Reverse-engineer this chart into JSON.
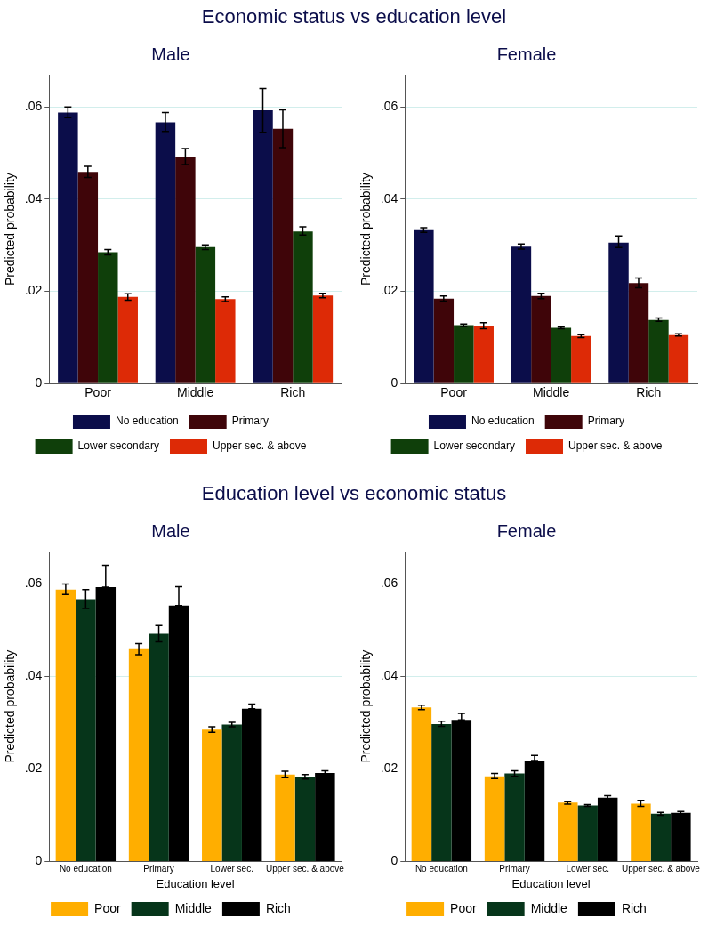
{
  "chart_data": [
    {
      "type": "bar",
      "title": "Economic status vs education level",
      "subtitle": "Male",
      "ylabel": "Predicted probability",
      "categories": [
        "Poor",
        "Middle",
        "Rich"
      ],
      "ylim": [
        0,
        0.067
      ],
      "yticks": [
        {
          "value": 0,
          "label": "0"
        },
        {
          "value": 0.02,
          "label": ".02"
        },
        {
          "value": 0.04,
          "label": ".04"
        },
        {
          "value": 0.06,
          "label": ".06"
        }
      ],
      "grid": "y",
      "legend": "bottom",
      "series": [
        {
          "name": "No education",
          "color": "#0b0d4a",
          "values": [
            0.0588,
            0.0567,
            0.0593
          ],
          "errors": [
            [
              0.0577,
              0.06
            ],
            [
              0.0547,
              0.0588
            ],
            [
              0.0545,
              0.064
            ]
          ]
        },
        {
          "name": "Primary",
          "color": "#3f0509",
          "values": [
            0.0459,
            0.0492,
            0.0553
          ],
          "errors": [
            [
              0.0447,
              0.0471
            ],
            [
              0.0475,
              0.051
            ],
            [
              0.0512,
              0.0594
            ]
          ]
        },
        {
          "name": "Lower secondary",
          "color": "#0f3f0a",
          "values": [
            0.0285,
            0.0296,
            0.033
          ],
          "errors": [
            [
              0.0279,
              0.0291
            ],
            [
              0.0291,
              0.0301
            ],
            [
              0.0322,
              0.034
            ]
          ]
        },
        {
          "name": "Upper sec. & above",
          "color": "#dd2a06",
          "values": [
            0.0188,
            0.0183,
            0.0191
          ],
          "errors": [
            [
              0.0181,
              0.0195
            ],
            [
              0.0178,
              0.0188
            ],
            [
              0.0186,
              0.0196
            ]
          ]
        }
      ]
    },
    {
      "type": "bar",
      "subtitle": "Female",
      "ylabel": "Predicted probability",
      "categories": [
        "Poor",
        "Middle",
        "Rich"
      ],
      "ylim": [
        0,
        0.067
      ],
      "yticks": [
        {
          "value": 0,
          "label": "0"
        },
        {
          "value": 0.02,
          "label": ".02"
        },
        {
          "value": 0.04,
          "label": ".04"
        },
        {
          "value": 0.06,
          "label": ".06"
        }
      ],
      "grid": "y",
      "legend": "bottom",
      "series": [
        {
          "name": "No education",
          "color": "#0b0d4a",
          "values": [
            0.0333,
            0.0297,
            0.0306
          ],
          "errors": [
            [
              0.0328,
              0.0338
            ],
            [
              0.0292,
              0.0303
            ],
            [
              0.0295,
              0.032
            ]
          ]
        },
        {
          "name": "Primary",
          "color": "#3f0509",
          "values": [
            0.0184,
            0.019,
            0.0218
          ],
          "errors": [
            [
              0.0179,
              0.019
            ],
            [
              0.0184,
              0.0196
            ],
            [
              0.0208,
              0.0229
            ]
          ]
        },
        {
          "name": "Lower secondary",
          "color": "#0f3f0a",
          "values": [
            0.0127,
            0.0121,
            0.0138
          ],
          "errors": [
            [
              0.0124,
              0.0129
            ],
            [
              0.0119,
              0.0123
            ],
            [
              0.0135,
              0.0142
            ]
          ]
        },
        {
          "name": "Upper sec. & above",
          "color": "#dd2a06",
          "values": [
            0.0125,
            0.0103,
            0.0105
          ],
          "errors": [
            [
              0.0119,
              0.0132
            ],
            [
              0.01,
              0.0106
            ],
            [
              0.0103,
              0.0108
            ]
          ]
        }
      ]
    },
    {
      "type": "bar",
      "title": "Education level vs economic status",
      "subtitle": "Male",
      "xlabel": "Education level",
      "ylabel": "Predicted probability",
      "categories": [
        "No education",
        "Primary",
        "Lower sec.",
        "Upper sec. & above"
      ],
      "ylim": [
        0,
        0.067
      ],
      "yticks": [
        {
          "value": 0,
          "label": "0"
        },
        {
          "value": 0.02,
          "label": ".02"
        },
        {
          "value": 0.04,
          "label": ".04"
        },
        {
          "value": 0.06,
          "label": ".06"
        }
      ],
      "grid": "y",
      "legend": "bottom",
      "series": [
        {
          "name": "Poor",
          "color": "#ffae00",
          "values": [
            0.0588,
            0.0459,
            0.0285,
            0.0188
          ],
          "errors": [
            [
              0.0577,
              0.06
            ],
            [
              0.0447,
              0.0471
            ],
            [
              0.0279,
              0.0291
            ],
            [
              0.0181,
              0.0195
            ]
          ]
        },
        {
          "name": "Middle",
          "color": "#06351a",
          "values": [
            0.0567,
            0.0492,
            0.0296,
            0.0183
          ],
          "errors": [
            [
              0.0547,
              0.0588
            ],
            [
              0.0475,
              0.051
            ],
            [
              0.0291,
              0.0301
            ],
            [
              0.0178,
              0.0188
            ]
          ]
        },
        {
          "name": "Rich",
          "color": "#000000",
          "values": [
            0.0593,
            0.0553,
            0.033,
            0.0191
          ],
          "errors": [
            [
              0.0593,
              0.064
            ],
            [
              0.0553,
              0.0594
            ],
            [
              0.033,
              0.034
            ],
            [
              0.0186,
              0.0196
            ]
          ]
        }
      ]
    },
    {
      "type": "bar",
      "subtitle": "Female",
      "xlabel": "Education level",
      "ylabel": "Predicted probability",
      "categories": [
        "No education",
        "Primary",
        "Lower sec.",
        "Upper sec. & above"
      ],
      "ylim": [
        0,
        0.067
      ],
      "yticks": [
        {
          "value": 0,
          "label": "0"
        },
        {
          "value": 0.02,
          "label": ".02"
        },
        {
          "value": 0.04,
          "label": ".04"
        },
        {
          "value": 0.06,
          "label": ".06"
        }
      ],
      "grid": "y",
      "legend": "bottom",
      "series": [
        {
          "name": "Poor",
          "color": "#ffae00",
          "values": [
            0.0333,
            0.0184,
            0.0127,
            0.0125
          ],
          "errors": [
            [
              0.0328,
              0.0338
            ],
            [
              0.0179,
              0.019
            ],
            [
              0.0124,
              0.0129
            ],
            [
              0.0119,
              0.0132
            ]
          ]
        },
        {
          "name": "Middle",
          "color": "#06351a",
          "values": [
            0.0297,
            0.019,
            0.0121,
            0.0103
          ],
          "errors": [
            [
              0.0292,
              0.0303
            ],
            [
              0.0184,
              0.0196
            ],
            [
              0.0119,
              0.0123
            ],
            [
              0.01,
              0.0106
            ]
          ]
        },
        {
          "name": "Rich",
          "color": "#000000",
          "values": [
            0.0306,
            0.0218,
            0.0138,
            0.0105
          ],
          "errors": [
            [
              0.0306,
              0.032
            ],
            [
              0.0218,
              0.0229
            ],
            [
              0.0135,
              0.0142
            ],
            [
              0.0103,
              0.0108
            ]
          ]
        }
      ]
    }
  ]
}
